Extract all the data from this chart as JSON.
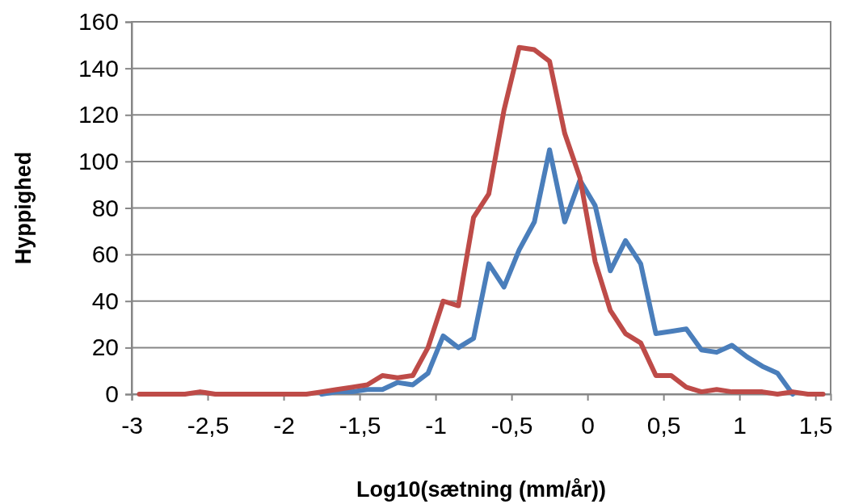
{
  "chart_data": {
    "type": "line",
    "xlabel": "Log10(sætning (mm/år))",
    "ylabel": "Hyppighed",
    "x": [
      -2.95,
      -2.85,
      -2.75,
      -2.65,
      -2.55,
      -2.45,
      -2.35,
      -2.25,
      -2.15,
      -2.05,
      -1.95,
      -1.85,
      -1.75,
      -1.65,
      -1.55,
      -1.45,
      -1.35,
      -1.25,
      -1.15,
      -1.05,
      -0.95,
      -0.85,
      -0.75,
      -0.65,
      -0.55,
      -0.45,
      -0.35,
      -0.25,
      -0.15,
      -0.05,
      0.05,
      0.15,
      0.25,
      0.35,
      0.45,
      0.55,
      0.65,
      0.75,
      0.85,
      0.95,
      1.05,
      1.15,
      1.25,
      1.35,
      1.45,
      1.55
    ],
    "series": [
      {
        "color": "#4a7ebb",
        "values": [
          null,
          null,
          null,
          null,
          null,
          null,
          null,
          null,
          null,
          null,
          null,
          null,
          0,
          1,
          1,
          2,
          2,
          5,
          4,
          9,
          25,
          20,
          24,
          56,
          46,
          62,
          74,
          105,
          74,
          92,
          81,
          53,
          66,
          56,
          26,
          27,
          28,
          19,
          18,
          21,
          16,
          12,
          9,
          0,
          null,
          null
        ]
      },
      {
        "color": "#be4b48",
        "values": [
          0,
          0,
          0,
          0,
          1,
          0,
          0,
          0,
          0,
          0,
          0,
          0,
          1,
          2,
          3,
          4,
          8,
          7,
          8,
          20,
          40,
          38,
          76,
          86,
          122,
          149,
          148,
          143,
          112,
          93,
          57,
          36,
          26,
          22,
          8,
          8,
          3,
          1,
          2,
          1,
          1,
          1,
          0,
          1,
          0,
          0
        ]
      }
    ],
    "xlim": [
      -3,
      1.6
    ],
    "xticks": [
      -3,
      {
        "value": -2.5,
        "label": "-2,5"
      },
      -2,
      {
        "value": -1.5,
        "label": "-1,5"
      },
      -1,
      {
        "value": -0.5,
        "label": "-0,5"
      },
      0,
      {
        "value": 0.5,
        "label": "0,5"
      },
      1,
      {
        "value": 1.5,
        "label": "1,5"
      }
    ],
    "ylim": [
      0,
      160
    ],
    "yticks": [
      0,
      20,
      40,
      60,
      80,
      100,
      120,
      140,
      160
    ],
    "grid": "y",
    "marker": "none",
    "line_style": "solid"
  }
}
